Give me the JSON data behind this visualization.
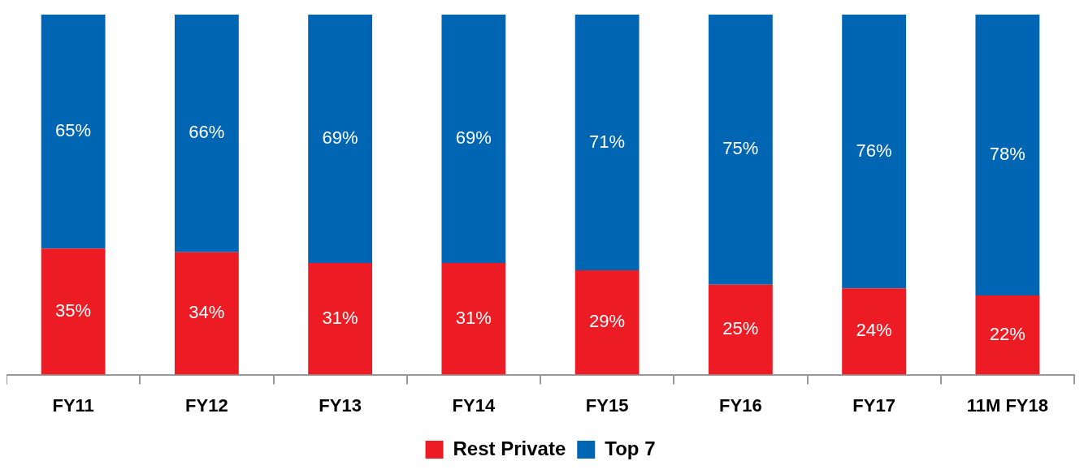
{
  "chart_data": {
    "type": "bar",
    "stacked": true,
    "categories": [
      "FY11",
      "FY12",
      "FY13",
      "FY14",
      "FY15",
      "FY16",
      "FY17",
      "11M FY18"
    ],
    "series": [
      {
        "name": "Rest Private",
        "color": "#ed1c24",
        "values": [
          35,
          34,
          31,
          31,
          29,
          25,
          24,
          22
        ],
        "value_labels": [
          "35%",
          "34%",
          "31%",
          "31%",
          "29%",
          "25%",
          "24%",
          "22%"
        ]
      },
      {
        "name": "Top 7",
        "color": "#0066b3",
        "values": [
          65,
          66,
          69,
          69,
          71,
          75,
          76,
          78
        ],
        "value_labels": [
          "65%",
          "66%",
          "69%",
          "69%",
          "71%",
          "75%",
          "76%",
          "78%"
        ]
      }
    ],
    "ylim": [
      0,
      100
    ],
    "tick_labels": "x",
    "legend": "bottom"
  }
}
